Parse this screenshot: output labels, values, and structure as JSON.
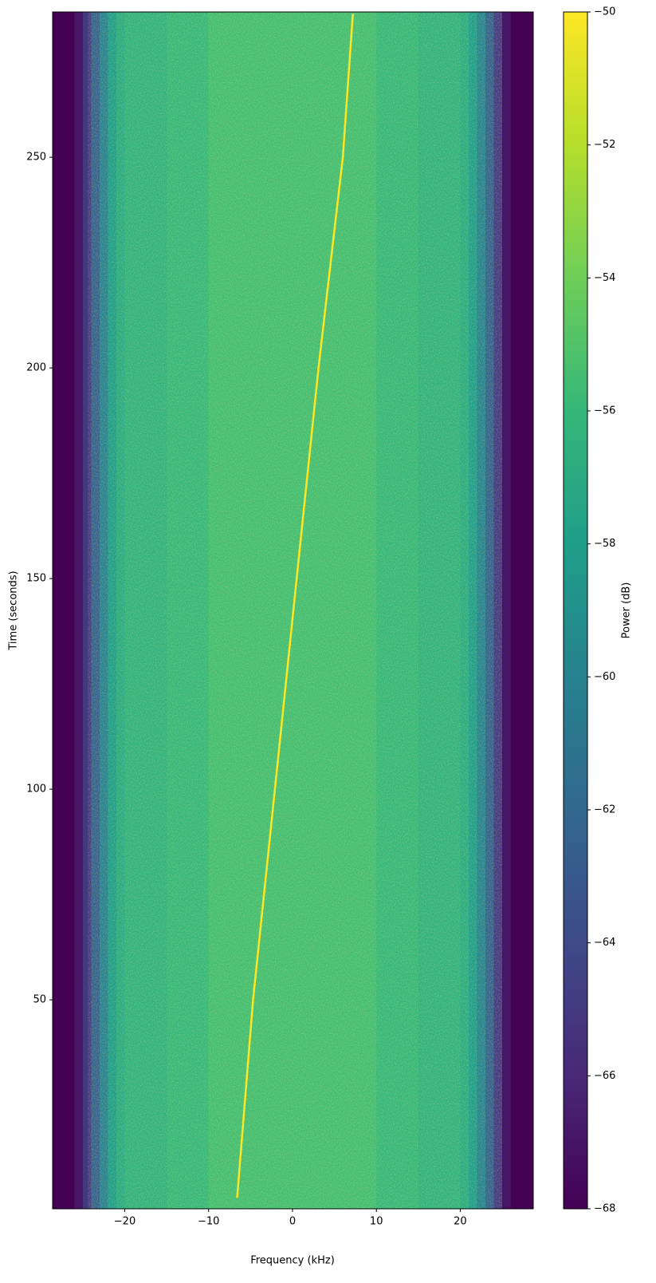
{
  "chart_data": {
    "type": "spectrogram",
    "xlabel": "Frequency (kHz)",
    "ylabel": "Time (seconds)",
    "xlim": [
      -28.6,
      28.7
    ],
    "ylim": [
      0.4,
      284.5
    ],
    "xticks": [
      {
        "value": -20,
        "label": "−20"
      },
      {
        "value": -10,
        "label": "−10"
      },
      0,
      10,
      20
    ],
    "yticks": [
      50,
      100,
      150,
      200,
      250
    ],
    "colorbar": {
      "label": "Power (dB)",
      "clim": [
        -68,
        -50
      ],
      "ticks": [
        {
          "value": -68,
          "label": "−68"
        },
        {
          "value": -66,
          "label": "−66"
        },
        {
          "value": -64,
          "label": "−64"
        },
        {
          "value": -62,
          "label": "−62"
        },
        {
          "value": -60,
          "label": "−60"
        },
        {
          "value": -58,
          "label": "−58"
        },
        {
          "value": -56,
          "label": "−56"
        },
        {
          "value": -54,
          "label": "−54"
        },
        {
          "value": -52,
          "label": "−52"
        },
        {
          "value": -50,
          "label": "−50"
        }
      ],
      "colormap": "viridis",
      "colors": [
        "#440154",
        "#482878",
        "#3e4a89",
        "#31688e",
        "#26828e",
        "#1f9e89",
        "#35b779",
        "#6ece58",
        "#b5de2b",
        "#fde725"
      ]
    },
    "profile": {
      "bins": [
        -28.6,
        -26,
        -25,
        -24,
        -23,
        -22,
        -21,
        -20,
        -15,
        -10,
        0,
        10,
        15,
        20,
        21,
        22,
        23,
        24,
        25,
        26,
        28.7
      ],
      "values": [
        -68,
        -67,
        -65,
        -62.5,
        -60,
        -58,
        -57,
        -56.5,
        -56,
        -55.5,
        -55.5,
        -56,
        -56.5,
        -57,
        -58,
        -60,
        -62.5,
        -65,
        -67,
        -68
      ]
    },
    "signal": {
      "x": [
        -6.6,
        -4.7,
        -2.1,
        0.5,
        3.1,
        6.0,
        7.2
      ],
      "y": [
        3,
        50,
        100,
        150,
        200,
        250,
        284
      ],
      "power": -50
    }
  }
}
